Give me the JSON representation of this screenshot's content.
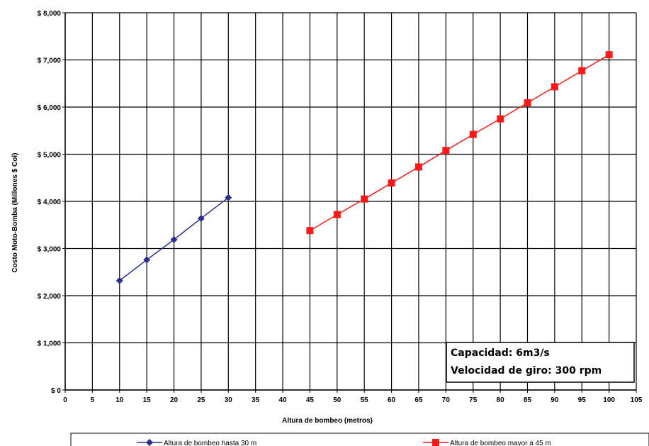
{
  "chart_data": {
    "type": "line",
    "title": "",
    "xlabel": "Altura de bombeo (metros)",
    "ylabel": "Costo Moto-Bomba (Millones $ Col)",
    "xlim": [
      0,
      105
    ],
    "ylim": [
      0,
      8000
    ],
    "x_ticks": [
      "0",
      "5",
      "10",
      "15",
      "20",
      "25",
      "30",
      "35",
      "40",
      "45",
      "50",
      "55",
      "60",
      "65",
      "70",
      "75",
      "80",
      "85",
      "90",
      "95",
      "100",
      "105"
    ],
    "y_ticks": [
      "$ 0",
      "$ 1,000",
      "$ 2,000",
      "$ 3,000",
      "$ 4,000",
      "$ 5,000",
      "$ 6,000",
      "$ 7,000",
      "$ 8,000"
    ],
    "grid": true,
    "legend_position": "bottom",
    "series": [
      {
        "name": "Altura de bombeo hasta 30 m",
        "color": "#2b2f8f",
        "marker": "diamond",
        "x": [
          10,
          15,
          20,
          25,
          30
        ],
        "y": [
          2320,
          2760,
          3190,
          3640,
          4080
        ]
      },
      {
        "name": "Altura de bombeo mayor a 45 m",
        "color": "#ff1a1a",
        "marker": "square",
        "x": [
          45,
          50,
          55,
          60,
          65,
          70,
          75,
          80,
          85,
          90,
          95,
          100
        ],
        "y": [
          3380,
          3720,
          4050,
          4390,
          4730,
          5080,
          5420,
          5750,
          6090,
          6430,
          6770,
          7110
        ]
      }
    ],
    "annotation": {
      "line1": "Capacidad:  6m3/s",
      "line2": "Velocidad de giro: 300 rpm"
    }
  }
}
